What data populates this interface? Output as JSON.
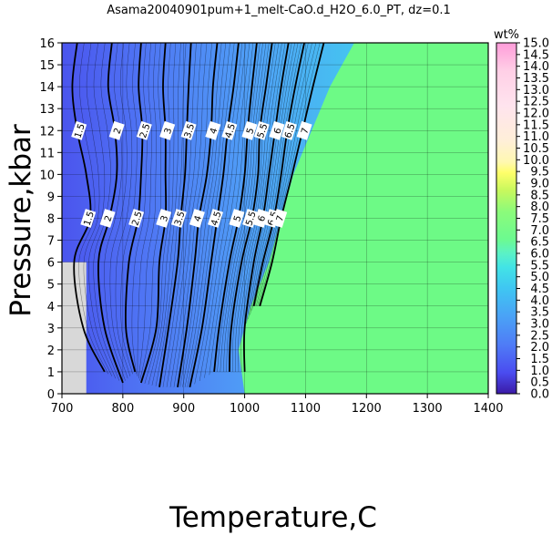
{
  "chart_data": {
    "type": "heatmap",
    "title": "Asama20040901pum+1_melt-CaO.d_H2O_6.0_PT, dz=0.1",
    "xlabel": "Temperature,C",
    "ylabel": "Pressure,kbar",
    "xlim": [
      700,
      1400
    ],
    "ylim": [
      0,
      16
    ],
    "x_ticks": [
      "700",
      "800",
      "900",
      "1000",
      "1100",
      "1200",
      "1300",
      "1400"
    ],
    "y_ticks": [
      "0",
      "1",
      "2",
      "3",
      "4",
      "5",
      "6",
      "7",
      "8",
      "9",
      "10",
      "11",
      "12",
      "13",
      "14",
      "15",
      "16"
    ],
    "grid": true,
    "colorbar": {
      "label": "wt%",
      "range": [
        0.0,
        15.0
      ],
      "ticks": [
        "0.0",
        "0.5",
        "1.0",
        "1.5",
        "2.0",
        "2.5",
        "3.0",
        "3.5",
        "4.0",
        "4.5",
        "5.0",
        "5.5",
        "6.0",
        "6.5",
        "7.0",
        "7.5",
        "8.0",
        "8.5",
        "9.0",
        "9.5",
        "10.0",
        "10.5",
        "11.0",
        "11.5",
        "12.0",
        "12.5",
        "13.0",
        "13.5",
        "14.0",
        "14.5",
        "15.0"
      ]
    },
    "saturation_region": {
      "value_wt_percent": 6.0,
      "boundary_temperature_at_pressure": [
        [
          1000,
          0
        ],
        [
          990,
          2
        ],
        [
          1010,
          4
        ],
        [
          1040,
          6
        ],
        [
          1080,
          10
        ],
        [
          1140,
          14
        ],
        [
          1180,
          16
        ]
      ]
    },
    "no_data_region": {
      "x_range": [
        700,
        740
      ],
      "y_range": [
        0,
        6
      ]
    },
    "contours": [
      {
        "level": "1.5",
        "points": [
          [
            725,
            16
          ],
          [
            717,
            14
          ],
          [
            725,
            12
          ],
          [
            740,
            10
          ],
          [
            746,
            8
          ],
          [
            720,
            6
          ],
          [
            735,
            3
          ],
          [
            770,
            1
          ]
        ]
      },
      {
        "level": "2",
        "points": [
          [
            782,
            16
          ],
          [
            776,
            14
          ],
          [
            787,
            12
          ],
          [
            790,
            10
          ],
          [
            778,
            8
          ],
          [
            760,
            6
          ],
          [
            770,
            3
          ],
          [
            800,
            0.5
          ]
        ]
      },
      {
        "level": "2.5",
        "points": [
          [
            830,
            16
          ],
          [
            826,
            14
          ],
          [
            832,
            12
          ],
          [
            830,
            10
          ],
          [
            825,
            8
          ],
          [
            810,
            6
          ],
          [
            805,
            3
          ],
          [
            820,
            1
          ]
        ]
      },
      {
        "level": "3",
        "points": [
          [
            870,
            16
          ],
          [
            866,
            14
          ],
          [
            870,
            12
          ],
          [
            870,
            10
          ],
          [
            870,
            8
          ],
          [
            860,
            6
          ],
          [
            855,
            3
          ],
          [
            830,
            0.5
          ]
        ]
      },
      {
        "level": "3.5",
        "points": [
          [
            912,
            16
          ],
          [
            908,
            14
          ],
          [
            905,
            12
          ],
          [
            902,
            10
          ],
          [
            895,
            8
          ],
          [
            890,
            6
          ],
          [
            875,
            3
          ],
          [
            860,
            0.3
          ]
        ]
      },
      {
        "level": "4",
        "points": [
          [
            955,
            16
          ],
          [
            948,
            14
          ],
          [
            945,
            12
          ],
          [
            938,
            10
          ],
          [
            925,
            8
          ],
          [
            918,
            6
          ],
          [
            905,
            3
          ],
          [
            890,
            0.3
          ]
        ]
      },
      {
        "level": "4.5",
        "points": [
          [
            990,
            16
          ],
          [
            982,
            14
          ],
          [
            972,
            12
          ],
          [
            965,
            10
          ],
          [
            955,
            8
          ],
          [
            945,
            6
          ],
          [
            930,
            3
          ],
          [
            910,
            0.3
          ]
        ]
      },
      {
        "level": "5",
        "points": [
          [
            1020,
            16
          ],
          [
            1012,
            14
          ],
          [
            1005,
            12
          ],
          [
            1000,
            10
          ],
          [
            990,
            8
          ],
          [
            975,
            6
          ],
          [
            958,
            3
          ],
          [
            950,
            1
          ]
        ]
      },
      {
        "level": "5.5",
        "points": [
          [
            1045,
            16
          ],
          [
            1035,
            14
          ],
          [
            1025,
            12
          ],
          [
            1022,
            10
          ],
          [
            1012,
            8
          ],
          [
            995,
            6
          ],
          [
            978,
            3
          ],
          [
            975,
            1
          ]
        ]
      },
      {
        "level": "6",
        "points": [
          [
            1072,
            16
          ],
          [
            1060,
            14
          ],
          [
            1050,
            12
          ],
          [
            1040,
            10
          ],
          [
            1030,
            8
          ],
          [
            1015,
            6
          ],
          [
            1000,
            3
          ],
          [
            1000,
            1
          ]
        ]
      },
      {
        "level": "6.5",
        "points": [
          [
            1098,
            16
          ],
          [
            1083,
            14
          ],
          [
            1070,
            12
          ],
          [
            1060,
            10
          ],
          [
            1048,
            8
          ],
          [
            1030,
            6
          ],
          [
            1015,
            4
          ]
        ]
      },
      {
        "level": "7",
        "points": [
          [
            1130,
            16
          ],
          [
            1112,
            14
          ],
          [
            1095,
            12
          ],
          [
            1078,
            10
          ],
          [
            1060,
            8
          ],
          [
            1045,
            6
          ],
          [
            1025,
            4
          ]
        ]
      }
    ]
  }
}
